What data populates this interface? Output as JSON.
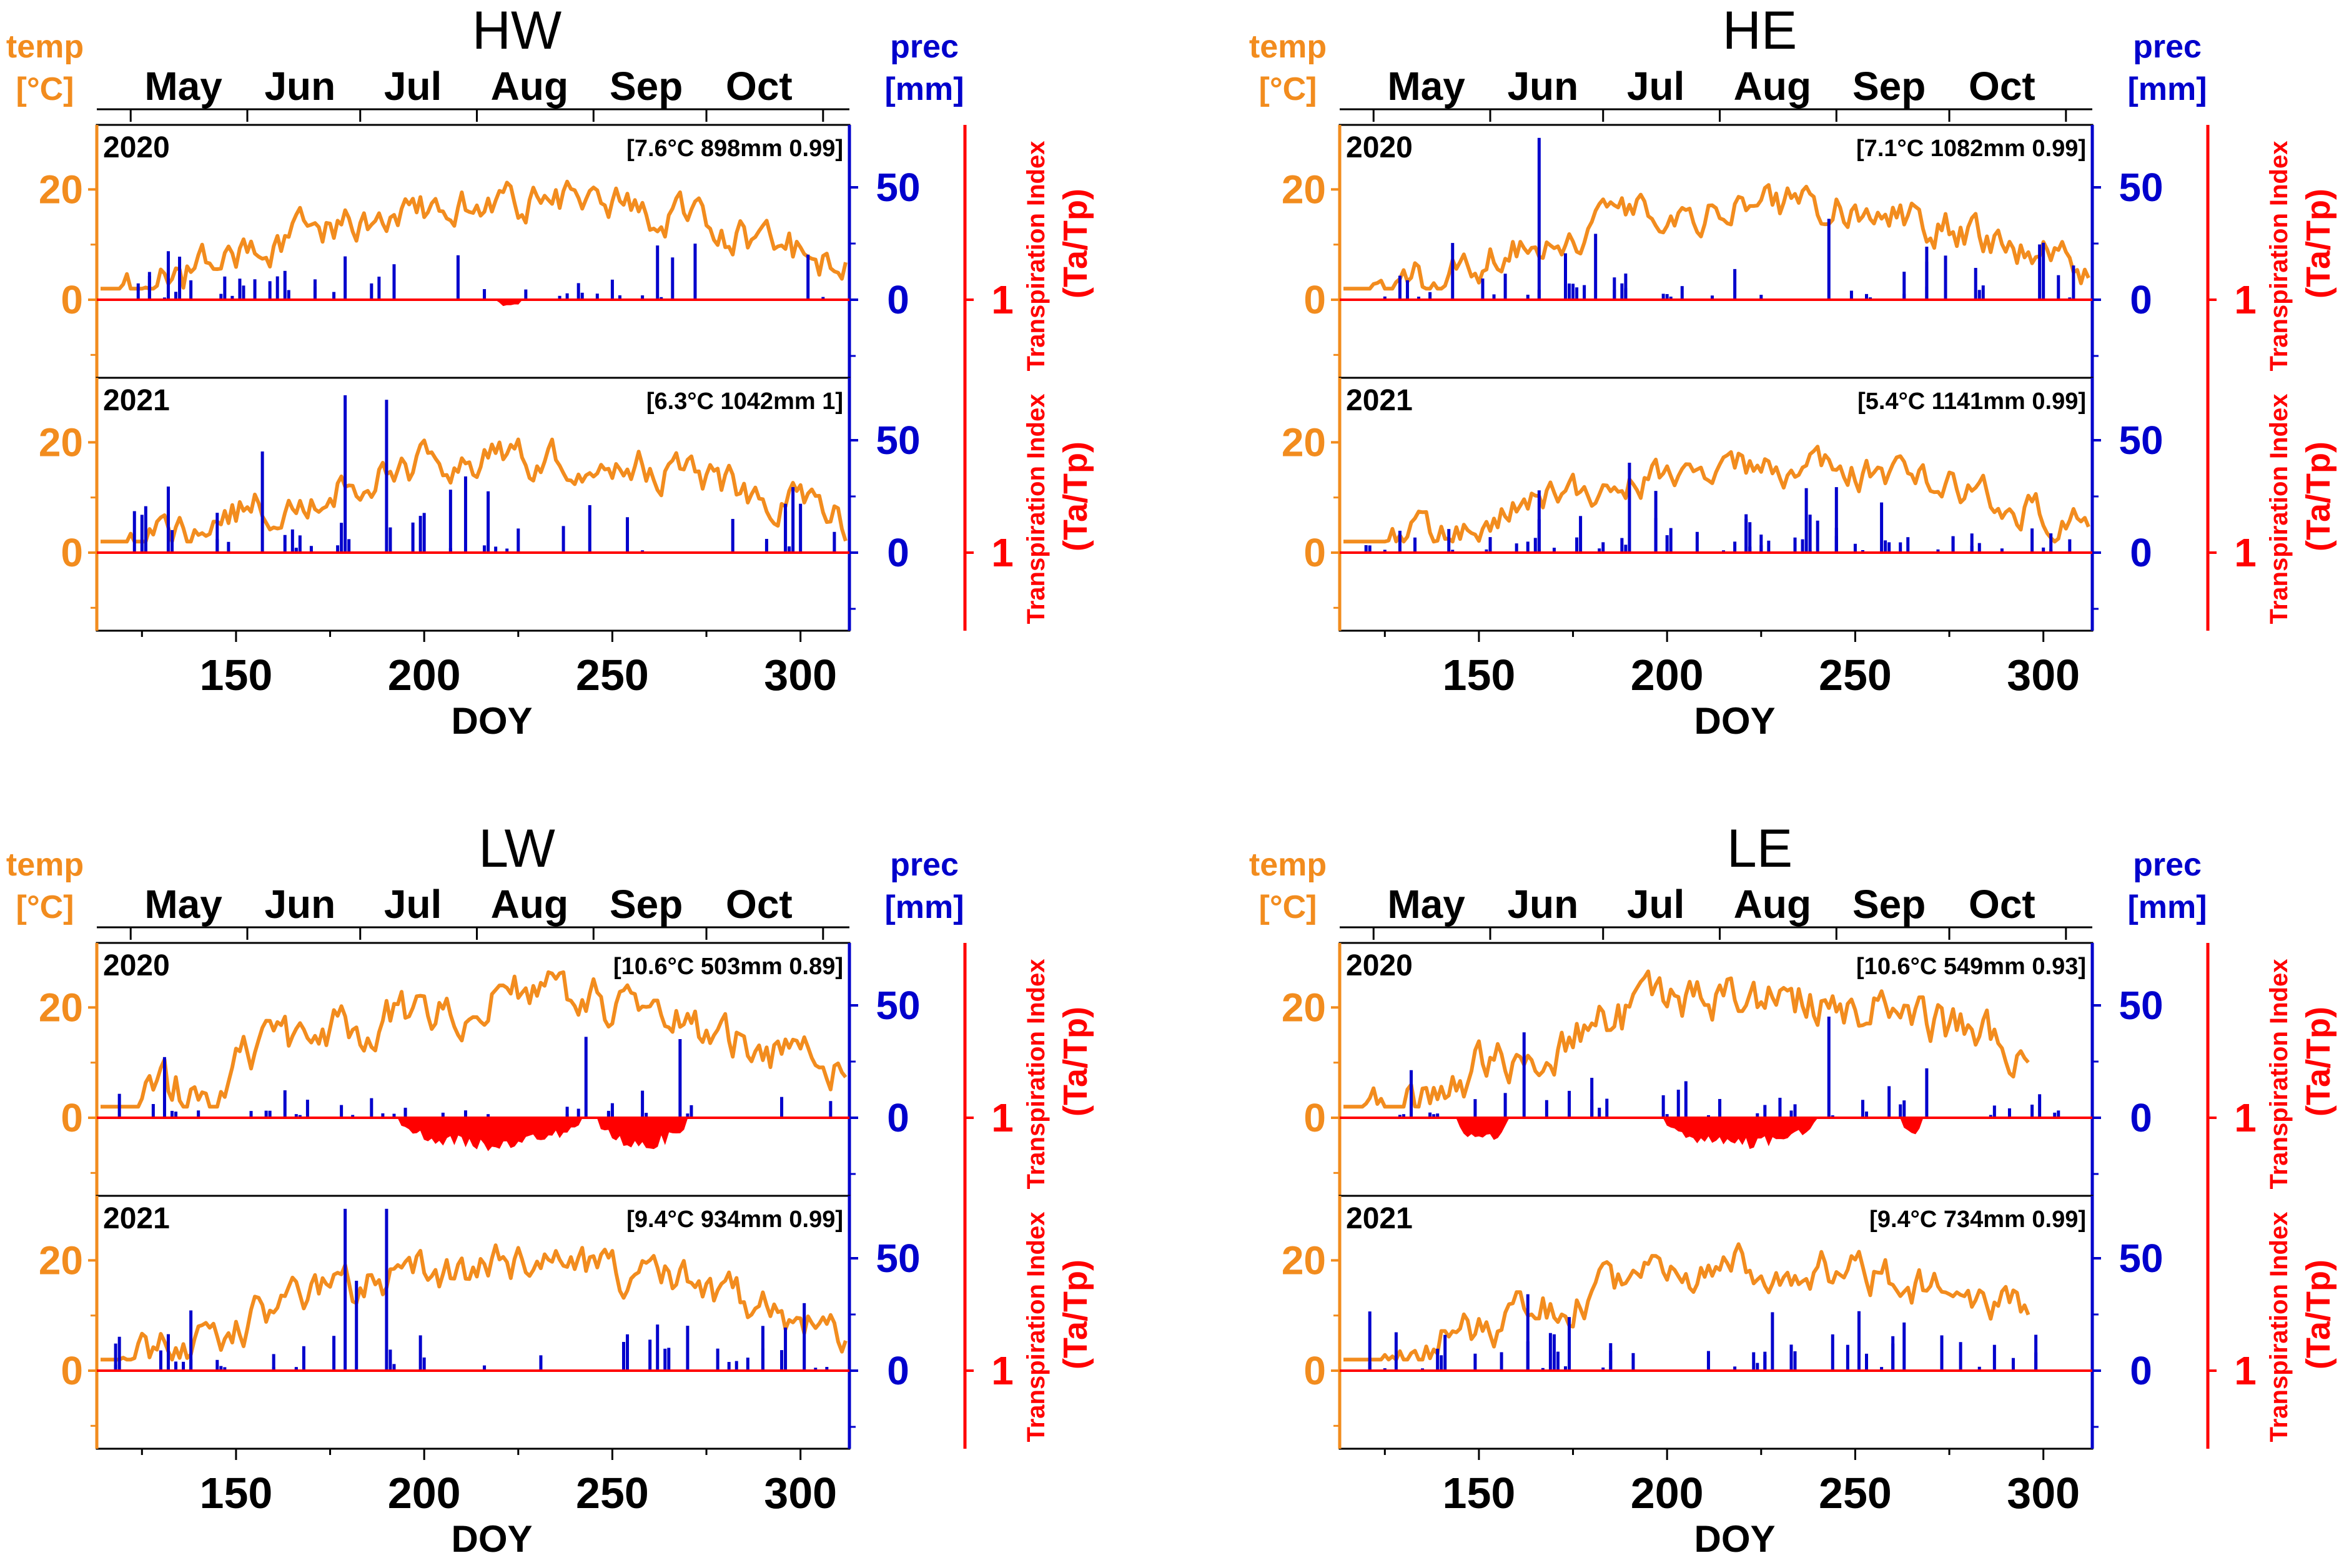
{
  "figure": {
    "x_axis_label": "DOY",
    "left_axis_label": [
      "temp",
      "[°C]"
    ],
    "right_axis_label": [
      "prec",
      "[mm]"
    ],
    "ti_axis_label": "Transpiration Index",
    "ti_axis_sub": "(Ta/Tp)",
    "months": [
      "May",
      "Jun",
      "Jul",
      "Aug",
      "Sep",
      "Oct"
    ],
    "month_positions_doy": [
      136,
      167,
      197,
      228,
      259,
      289
    ],
    "month_boundaries_doy": [
      122,
      153,
      183,
      214,
      245,
      275,
      306
    ],
    "colors": {
      "temp": "#f28c1e",
      "prec": "#0000cc",
      "ti": "#ff0000",
      "axis": "#000000"
    }
  },
  "chart_data": [
    {
      "type": "line+bar",
      "site": "HW",
      "xlim": [
        113,
        313
      ],
      "x_ticks": [
        150,
        200,
        250,
        300
      ],
      "temp_ylim": [
        -13,
        30
      ],
      "temp_ticks": [
        0,
        20
      ],
      "prec_ylim": [
        -33,
        75
      ],
      "prec_ticks": [
        0,
        50
      ],
      "ti_tick": "1",
      "years": [
        {
          "year": "2020",
          "summary": "[7.6°C 898mm 0.99]",
          "temp_scale": 1.0,
          "prec_seed": 11,
          "prec_count": 42,
          "prec_max": 34,
          "prec_peaks": [],
          "deficit": [
            [
              219,
              226,
              0.8
            ]
          ]
        },
        {
          "year": "2021",
          "summary": "[6.3°C 1042mm 1]",
          "temp_scale": 0.95,
          "prec_seed": 23,
          "prec_count": 46,
          "prec_max": 45,
          "prec_peaks": [
            [
              179,
              70
            ],
            [
              190,
              68
            ],
            [
              157,
              45
            ]
          ],
          "deficit": []
        }
      ]
    },
    {
      "type": "line+bar",
      "site": "HE",
      "xlim": [
        113,
        313
      ],
      "x_ticks": [
        150,
        200,
        250,
        300
      ],
      "temp_ylim": [
        -13,
        30
      ],
      "temp_ticks": [
        0,
        20
      ],
      "prec_ylim": [
        -33,
        75
      ],
      "prec_ticks": [
        0,
        50
      ],
      "ti_tick": "1",
      "years": [
        {
          "year": "2020",
          "summary": "[7.1°C 1082mm 0.99]",
          "temp_scale": 0.97,
          "prec_seed": 37,
          "prec_count": 48,
          "prec_max": 35,
          "prec_peaks": [
            [
              166,
              72
            ],
            [
              243,
              36
            ]
          ],
          "deficit": []
        },
        {
          "year": "2021",
          "summary": "[5.4°C 1141mm 0.99]",
          "temp_scale": 0.88,
          "prec_seed": 41,
          "prec_count": 64,
          "prec_max": 30,
          "prec_peaks": [
            [
              190,
              40
            ]
          ],
          "deficit": []
        }
      ]
    },
    {
      "type": "line+bar",
      "site": "LW",
      "xlim": [
        113,
        313
      ],
      "x_ticks": [
        150,
        200,
        250,
        300
      ],
      "temp_ylim": [
        -13,
        30
      ],
      "temp_ticks": [
        0,
        20
      ],
      "prec_ylim": [
        -33,
        75
      ],
      "prec_ticks": [
        0,
        50
      ],
      "ti_tick": "1",
      "years": [
        {
          "year": "2020",
          "summary": "[10.6°C 503mm 0.89]",
          "temp_scale": 1.2,
          "prec_seed": 53,
          "prec_count": 36,
          "prec_max": 22,
          "prec_peaks": [
            [
              243,
              36
            ],
            [
              268,
              35
            ],
            [
              131,
              27
            ]
          ],
          "deficit": [
            [
              193,
              242,
              3.8
            ],
            [
              246,
              270,
              3.8
            ]
          ]
        },
        {
          "year": "2021",
          "summary": "[9.4°C 934mm 0.99]",
          "temp_scale": 1.05,
          "prec_seed": 67,
          "prec_count": 44,
          "prec_max": 40,
          "prec_peaks": [
            [
              179,
              72
            ],
            [
              190,
              72
            ],
            [
              182,
              40
            ]
          ],
          "deficit": []
        }
      ]
    },
    {
      "type": "line+bar",
      "site": "LE",
      "xlim": [
        113,
        313
      ],
      "x_ticks": [
        150,
        200,
        250,
        300
      ],
      "temp_ylim": [
        -13,
        30
      ],
      "temp_ticks": [
        0,
        20
      ],
      "prec_ylim": [
        -33,
        75
      ],
      "prec_ticks": [
        0,
        50
      ],
      "ti_tick": "1",
      "years": [
        {
          "year": "2020",
          "summary": "[10.6°C 549mm 0.93]",
          "temp_scale": 1.2,
          "prec_seed": 71,
          "prec_count": 40,
          "prec_max": 22,
          "prec_peaks": [
            [
              243,
              45
            ],
            [
              162,
              38
            ],
            [
              269,
              22
            ]
          ],
          "deficit": [
            [
              144,
              158,
              3.0
            ],
            [
              199,
              240,
              3.6
            ],
            [
              262,
              268,
              2.0
            ]
          ]
        },
        {
          "year": "2021",
          "summary": "[9.4°C 734mm 0.99]",
          "temp_scale": 1.05,
          "prec_seed": 83,
          "prec_count": 46,
          "prec_max": 30,
          "prec_peaks": [
            [
              163,
              34
            ],
            [
              228,
              26
            ]
          ],
          "deficit": []
        }
      ]
    }
  ]
}
